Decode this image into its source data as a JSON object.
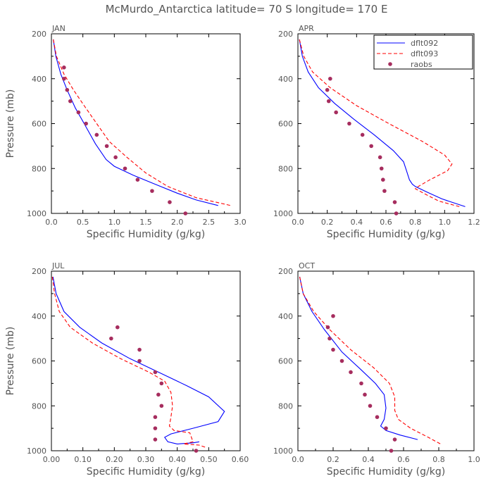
{
  "title": "McMurdo_Antarctica   latitude=  70 S  longitude=  170 E",
  "colors": {
    "dflt092": "#0000ff",
    "dflt093": "#ff0000",
    "raobs": "#a62d5e"
  },
  "chart_data": [
    {
      "type": "line",
      "panel": "JAN",
      "xlabel": "Specific Humidity (g/kg)",
      "ylabel": "Pressure (mb)",
      "xlim": [
        0,
        3.0
      ],
      "ylim": [
        1000,
        200
      ],
      "xticks": [
        0.0,
        0.5,
        1.0,
        1.5,
        2.0,
        2.5,
        3.0
      ],
      "xtick_labels": [
        "0.0",
        "0.5",
        "1.0",
        "1.5",
        "2.0",
        "2.5",
        "3.0"
      ],
      "yticks": [
        200,
        400,
        600,
        800,
        1000
      ],
      "ytick_labels": [
        "200",
        "400",
        "600",
        "800",
        "1000"
      ],
      "series": [
        {
          "name": "dflt092",
          "style": "solid",
          "points": [
            [
              0.03,
              225
            ],
            [
              0.07,
              300
            ],
            [
              0.15,
              380
            ],
            [
              0.25,
              450
            ],
            [
              0.38,
              530
            ],
            [
              0.52,
              600
            ],
            [
              0.7,
              690
            ],
            [
              0.87,
              760
            ],
            [
              1.0,
              790
            ],
            [
              1.3,
              830
            ],
            [
              1.65,
              870
            ],
            [
              2.0,
              910
            ],
            [
              2.3,
              940
            ],
            [
              2.65,
              965
            ]
          ]
        },
        {
          "name": "dflt093",
          "style": "dashed",
          "points": [
            [
              0.03,
              225
            ],
            [
              0.08,
              300
            ],
            [
              0.2,
              380
            ],
            [
              0.35,
              450
            ],
            [
              0.52,
              520
            ],
            [
              0.72,
              600
            ],
            [
              0.92,
              680
            ],
            [
              1.2,
              750
            ],
            [
              1.5,
              820
            ],
            [
              1.85,
              880
            ],
            [
              2.3,
              930
            ],
            [
              2.85,
              965
            ]
          ]
        },
        {
          "name": "raobs",
          "style": "markers",
          "points": [
            [
              0.2,
              350
            ],
            [
              0.2,
              400
            ],
            [
              0.25,
              450
            ],
            [
              0.3,
              500
            ],
            [
              0.43,
              550
            ],
            [
              0.55,
              600
            ],
            [
              0.72,
              650
            ],
            [
              0.88,
              700
            ],
            [
              1.02,
              750
            ],
            [
              1.17,
              800
            ],
            [
              1.37,
              850
            ],
            [
              1.6,
              900
            ],
            [
              1.88,
              950
            ],
            [
              2.13,
              1000
            ]
          ]
        }
      ]
    },
    {
      "type": "line",
      "panel": "APR",
      "xlabel": "Specific Humidity (g/kg)",
      "ylabel": "",
      "xlim": [
        0,
        1.2
      ],
      "ylim": [
        1000,
        200
      ],
      "xticks": [
        0.0,
        0.2,
        0.4,
        0.6,
        0.8,
        1.0,
        1.2
      ],
      "xtick_labels": [
        "0.0",
        "0.2",
        "0.4",
        "0.6",
        "0.8",
        "1.0",
        "1.2"
      ],
      "yticks": [
        200,
        400,
        600,
        800,
        1000
      ],
      "ytick_labels": [
        "200",
        "400",
        "600",
        "800",
        "1000"
      ],
      "legend": {
        "position": "top-right",
        "entries": [
          "dflt092",
          "dflt093",
          "raobs"
        ]
      },
      "series": [
        {
          "name": "dflt092",
          "style": "solid",
          "points": [
            [
              0.01,
              225
            ],
            [
              0.03,
              300
            ],
            [
              0.07,
              370
            ],
            [
              0.14,
              440
            ],
            [
              0.25,
              510
            ],
            [
              0.38,
              580
            ],
            [
              0.52,
              650
            ],
            [
              0.65,
              720
            ],
            [
              0.72,
              770
            ],
            [
              0.74,
              810
            ],
            [
              0.76,
              850
            ],
            [
              0.78,
              870
            ],
            [
              0.8,
              880
            ],
            [
              0.88,
              905
            ],
            [
              0.98,
              935
            ],
            [
              1.14,
              970
            ]
          ]
        },
        {
          "name": "dflt093",
          "style": "dashed",
          "points": [
            [
              0.01,
              225
            ],
            [
              0.04,
              300
            ],
            [
              0.1,
              370
            ],
            [
              0.22,
              440
            ],
            [
              0.4,
              520
            ],
            [
              0.62,
              600
            ],
            [
              0.85,
              680
            ],
            [
              1.0,
              740
            ],
            [
              1.05,
              780
            ],
            [
              1.02,
              810
            ],
            [
              0.9,
              850
            ],
            [
              0.82,
              880
            ],
            [
              0.8,
              890
            ],
            [
              0.87,
              915
            ],
            [
              0.96,
              945
            ],
            [
              1.1,
              970
            ]
          ]
        },
        {
          "name": "raobs",
          "style": "markers",
          "points": [
            [
              0.22,
              400
            ],
            [
              0.2,
              450
            ],
            [
              0.21,
              500
            ],
            [
              0.26,
              550
            ],
            [
              0.35,
              600
            ],
            [
              0.44,
              650
            ],
            [
              0.5,
              700
            ],
            [
              0.56,
              750
            ],
            [
              0.57,
              800
            ],
            [
              0.58,
              850
            ],
            [
              0.59,
              900
            ],
            [
              0.66,
              950
            ],
            [
              0.67,
              1000
            ]
          ]
        }
      ]
    },
    {
      "type": "line",
      "panel": "JUL",
      "xlabel": "Specific Humidity (g/kg)",
      "ylabel": "Pressure (mb)",
      "xlim": [
        0,
        0.6
      ],
      "ylim": [
        1000,
        200
      ],
      "xticks": [
        0.0,
        0.1,
        0.2,
        0.3,
        0.4,
        0.5,
        0.6
      ],
      "xtick_labels": [
        "0.00",
        "0.10",
        "0.20",
        "0.30",
        "0.40",
        "0.50",
        "0.60"
      ],
      "yticks": [
        200,
        400,
        600,
        800,
        1000
      ],
      "ytick_labels": [
        "200",
        "400",
        "600",
        "800",
        "1000"
      ],
      "series": [
        {
          "name": "dflt092",
          "style": "solid",
          "points": [
            [
              0.005,
              225
            ],
            [
              0.015,
              300
            ],
            [
              0.04,
              380
            ],
            [
              0.09,
              450
            ],
            [
              0.16,
              520
            ],
            [
              0.25,
              590
            ],
            [
              0.34,
              650
            ],
            [
              0.43,
              710
            ],
            [
              0.5,
              760
            ],
            [
              0.55,
              825
            ],
            [
              0.53,
              870
            ],
            [
              0.45,
              900
            ],
            [
              0.38,
              925
            ],
            [
              0.36,
              940
            ],
            [
              0.37,
              960
            ],
            [
              0.4,
              970
            ],
            [
              0.45,
              965
            ],
            [
              0.47,
              960
            ]
          ]
        },
        {
          "name": "dflt093",
          "style": "dashed",
          "points": [
            [
              0.003,
              225
            ],
            [
              0.01,
              300
            ],
            [
              0.025,
              380
            ],
            [
              0.06,
              450
            ],
            [
              0.13,
              520
            ],
            [
              0.22,
              590
            ],
            [
              0.31,
              650
            ],
            [
              0.36,
              690
            ],
            [
              0.38,
              740
            ],
            [
              0.385,
              800
            ],
            [
              0.38,
              850
            ],
            [
              0.375,
              890
            ],
            [
              0.39,
              910
            ],
            [
              0.44,
              920
            ],
            [
              0.45,
              960
            ],
            [
              0.42,
              970
            ],
            [
              0.47,
              975
            ],
            [
              0.49,
              985
            ]
          ]
        },
        {
          "name": "raobs",
          "style": "markers",
          "points": [
            [
              0.21,
              450
            ],
            [
              0.19,
              500
            ],
            [
              0.28,
              550
            ],
            [
              0.28,
              600
            ],
            [
              0.33,
              650
            ],
            [
              0.35,
              700
            ],
            [
              0.34,
              750
            ],
            [
              0.35,
              800
            ],
            [
              0.33,
              850
            ],
            [
              0.33,
              900
            ],
            [
              0.33,
              950
            ],
            [
              0.46,
              1000
            ]
          ]
        }
      ]
    },
    {
      "type": "line",
      "panel": "OCT",
      "xlabel": "Specific Humidity (g/kg)",
      "ylabel": "",
      "xlim": [
        0,
        1.0
      ],
      "ylim": [
        1000,
        200
      ],
      "xticks": [
        0.0,
        0.2,
        0.4,
        0.6,
        0.8,
        1.0
      ],
      "xtick_labels": [
        "0.0",
        "0.2",
        "0.4",
        "0.6",
        "0.8",
        "1.0"
      ],
      "yticks": [
        200,
        400,
        600,
        800,
        1000
      ],
      "ytick_labels": [
        "200",
        "400",
        "600",
        "800",
        "1000"
      ],
      "series": [
        {
          "name": "dflt092",
          "style": "solid",
          "points": [
            [
              0.01,
              225
            ],
            [
              0.03,
              300
            ],
            [
              0.08,
              380
            ],
            [
              0.15,
              460
            ],
            [
              0.25,
              560
            ],
            [
              0.36,
              640
            ],
            [
              0.44,
              700
            ],
            [
              0.49,
              750
            ],
            [
              0.5,
              810
            ],
            [
              0.49,
              860
            ],
            [
              0.47,
              890
            ],
            [
              0.5,
              910
            ],
            [
              0.58,
              930
            ],
            [
              0.68,
              950
            ]
          ]
        },
        {
          "name": "dflt093",
          "style": "dashed",
          "points": [
            [
              0.01,
              225
            ],
            [
              0.03,
              300
            ],
            [
              0.09,
              380
            ],
            [
              0.18,
              460
            ],
            [
              0.3,
              550
            ],
            [
              0.43,
              630
            ],
            [
              0.52,
              700
            ],
            [
              0.55,
              760
            ],
            [
              0.55,
              820
            ],
            [
              0.57,
              860
            ],
            [
              0.64,
              900
            ],
            [
              0.74,
              940
            ],
            [
              0.81,
              970
            ]
          ]
        },
        {
          "name": "raobs",
          "style": "markers",
          "points": [
            [
              0.2,
              400
            ],
            [
              0.17,
              450
            ],
            [
              0.18,
              500
            ],
            [
              0.2,
              550
            ],
            [
              0.25,
              600
            ],
            [
              0.3,
              650
            ],
            [
              0.36,
              700
            ],
            [
              0.38,
              750
            ],
            [
              0.41,
              800
            ],
            [
              0.45,
              850
            ],
            [
              0.5,
              900
            ],
            [
              0.55,
              950
            ],
            [
              0.53,
              1000
            ]
          ]
        }
      ]
    }
  ]
}
